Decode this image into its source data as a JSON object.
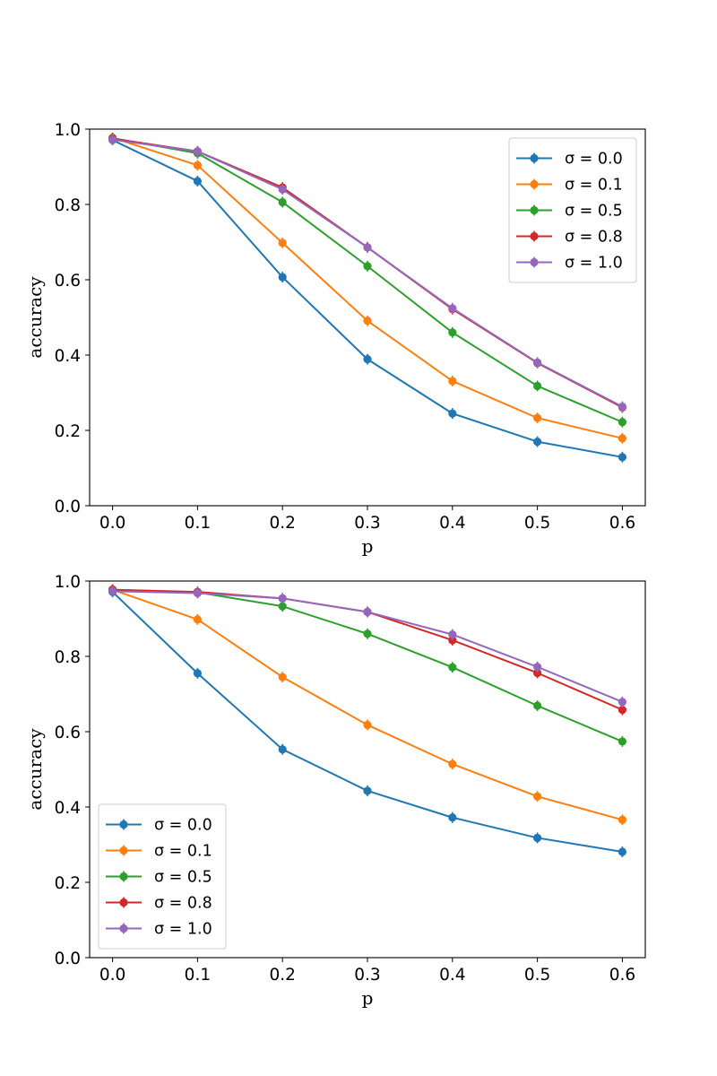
{
  "chart_data": [
    {
      "type": "line",
      "x": [
        0.0,
        0.1,
        0.2,
        0.3,
        0.4,
        0.5,
        0.6
      ],
      "xticks": [
        "0.0",
        "0.1",
        "0.2",
        "0.3",
        "0.4",
        "0.5",
        "0.6"
      ],
      "yticks": [
        "0.0",
        "0.2",
        "0.4",
        "0.6",
        "0.8",
        "1.0"
      ],
      "xlim": [
        -0.027,
        0.627
      ],
      "ylim": [
        0.0,
        1.0
      ],
      "xlabel": "p",
      "ylabel": "accuracy",
      "legend_position": "top-right",
      "series": [
        {
          "name": "σ = 0.0",
          "color": "#1f77b4",
          "values": [
            0.971,
            0.862,
            0.607,
            0.389,
            0.245,
            0.17,
            0.129
          ]
        },
        {
          "name": "σ = 0.1",
          "color": "#ff7f0e",
          "values": [
            0.977,
            0.904,
            0.698,
            0.491,
            0.331,
            0.233,
            0.179
          ]
        },
        {
          "name": "σ = 0.5",
          "color": "#2ca02c",
          "values": [
            0.976,
            0.936,
            0.806,
            0.636,
            0.46,
            0.318,
            0.222
          ]
        },
        {
          "name": "σ = 0.8",
          "color": "#d62728",
          "values": [
            0.975,
            0.941,
            0.845,
            0.686,
            0.522,
            0.379,
            0.261
          ]
        },
        {
          "name": "σ = 1.0",
          "color": "#9467bd",
          "values": [
            0.972,
            0.941,
            0.84,
            0.686,
            0.524,
            0.38,
            0.263
          ]
        }
      ]
    },
    {
      "type": "line",
      "x": [
        0.0,
        0.1,
        0.2,
        0.3,
        0.4,
        0.5,
        0.6
      ],
      "xticks": [
        "0.0",
        "0.1",
        "0.2",
        "0.3",
        "0.4",
        "0.5",
        "0.6"
      ],
      "yticks": [
        "0.0",
        "0.2",
        "0.4",
        "0.6",
        "0.8",
        "1.0"
      ],
      "xlim": [
        -0.027,
        0.627
      ],
      "ylim": [
        0.0,
        1.0
      ],
      "xlabel": "p",
      "ylabel": "accuracy",
      "legend_position": "bottom-left",
      "series": [
        {
          "name": "σ = 0.0",
          "color": "#1f77b4",
          "values": [
            0.971,
            0.755,
            0.553,
            0.443,
            0.372,
            0.318,
            0.281
          ]
        },
        {
          "name": "σ = 0.1",
          "color": "#ff7f0e",
          "values": [
            0.977,
            0.898,
            0.745,
            0.618,
            0.514,
            0.428,
            0.366
          ]
        },
        {
          "name": "σ = 0.5",
          "color": "#2ca02c",
          "values": [
            0.977,
            0.97,
            0.933,
            0.86,
            0.771,
            0.669,
            0.574
          ]
        },
        {
          "name": "σ = 0.8",
          "color": "#d62728",
          "values": [
            0.977,
            0.971,
            0.954,
            0.918,
            0.843,
            0.756,
            0.658
          ]
        },
        {
          "name": "σ = 1.0",
          "color": "#9467bd",
          "values": [
            0.973,
            0.968,
            0.954,
            0.918,
            0.858,
            0.772,
            0.679
          ]
        }
      ]
    }
  ]
}
